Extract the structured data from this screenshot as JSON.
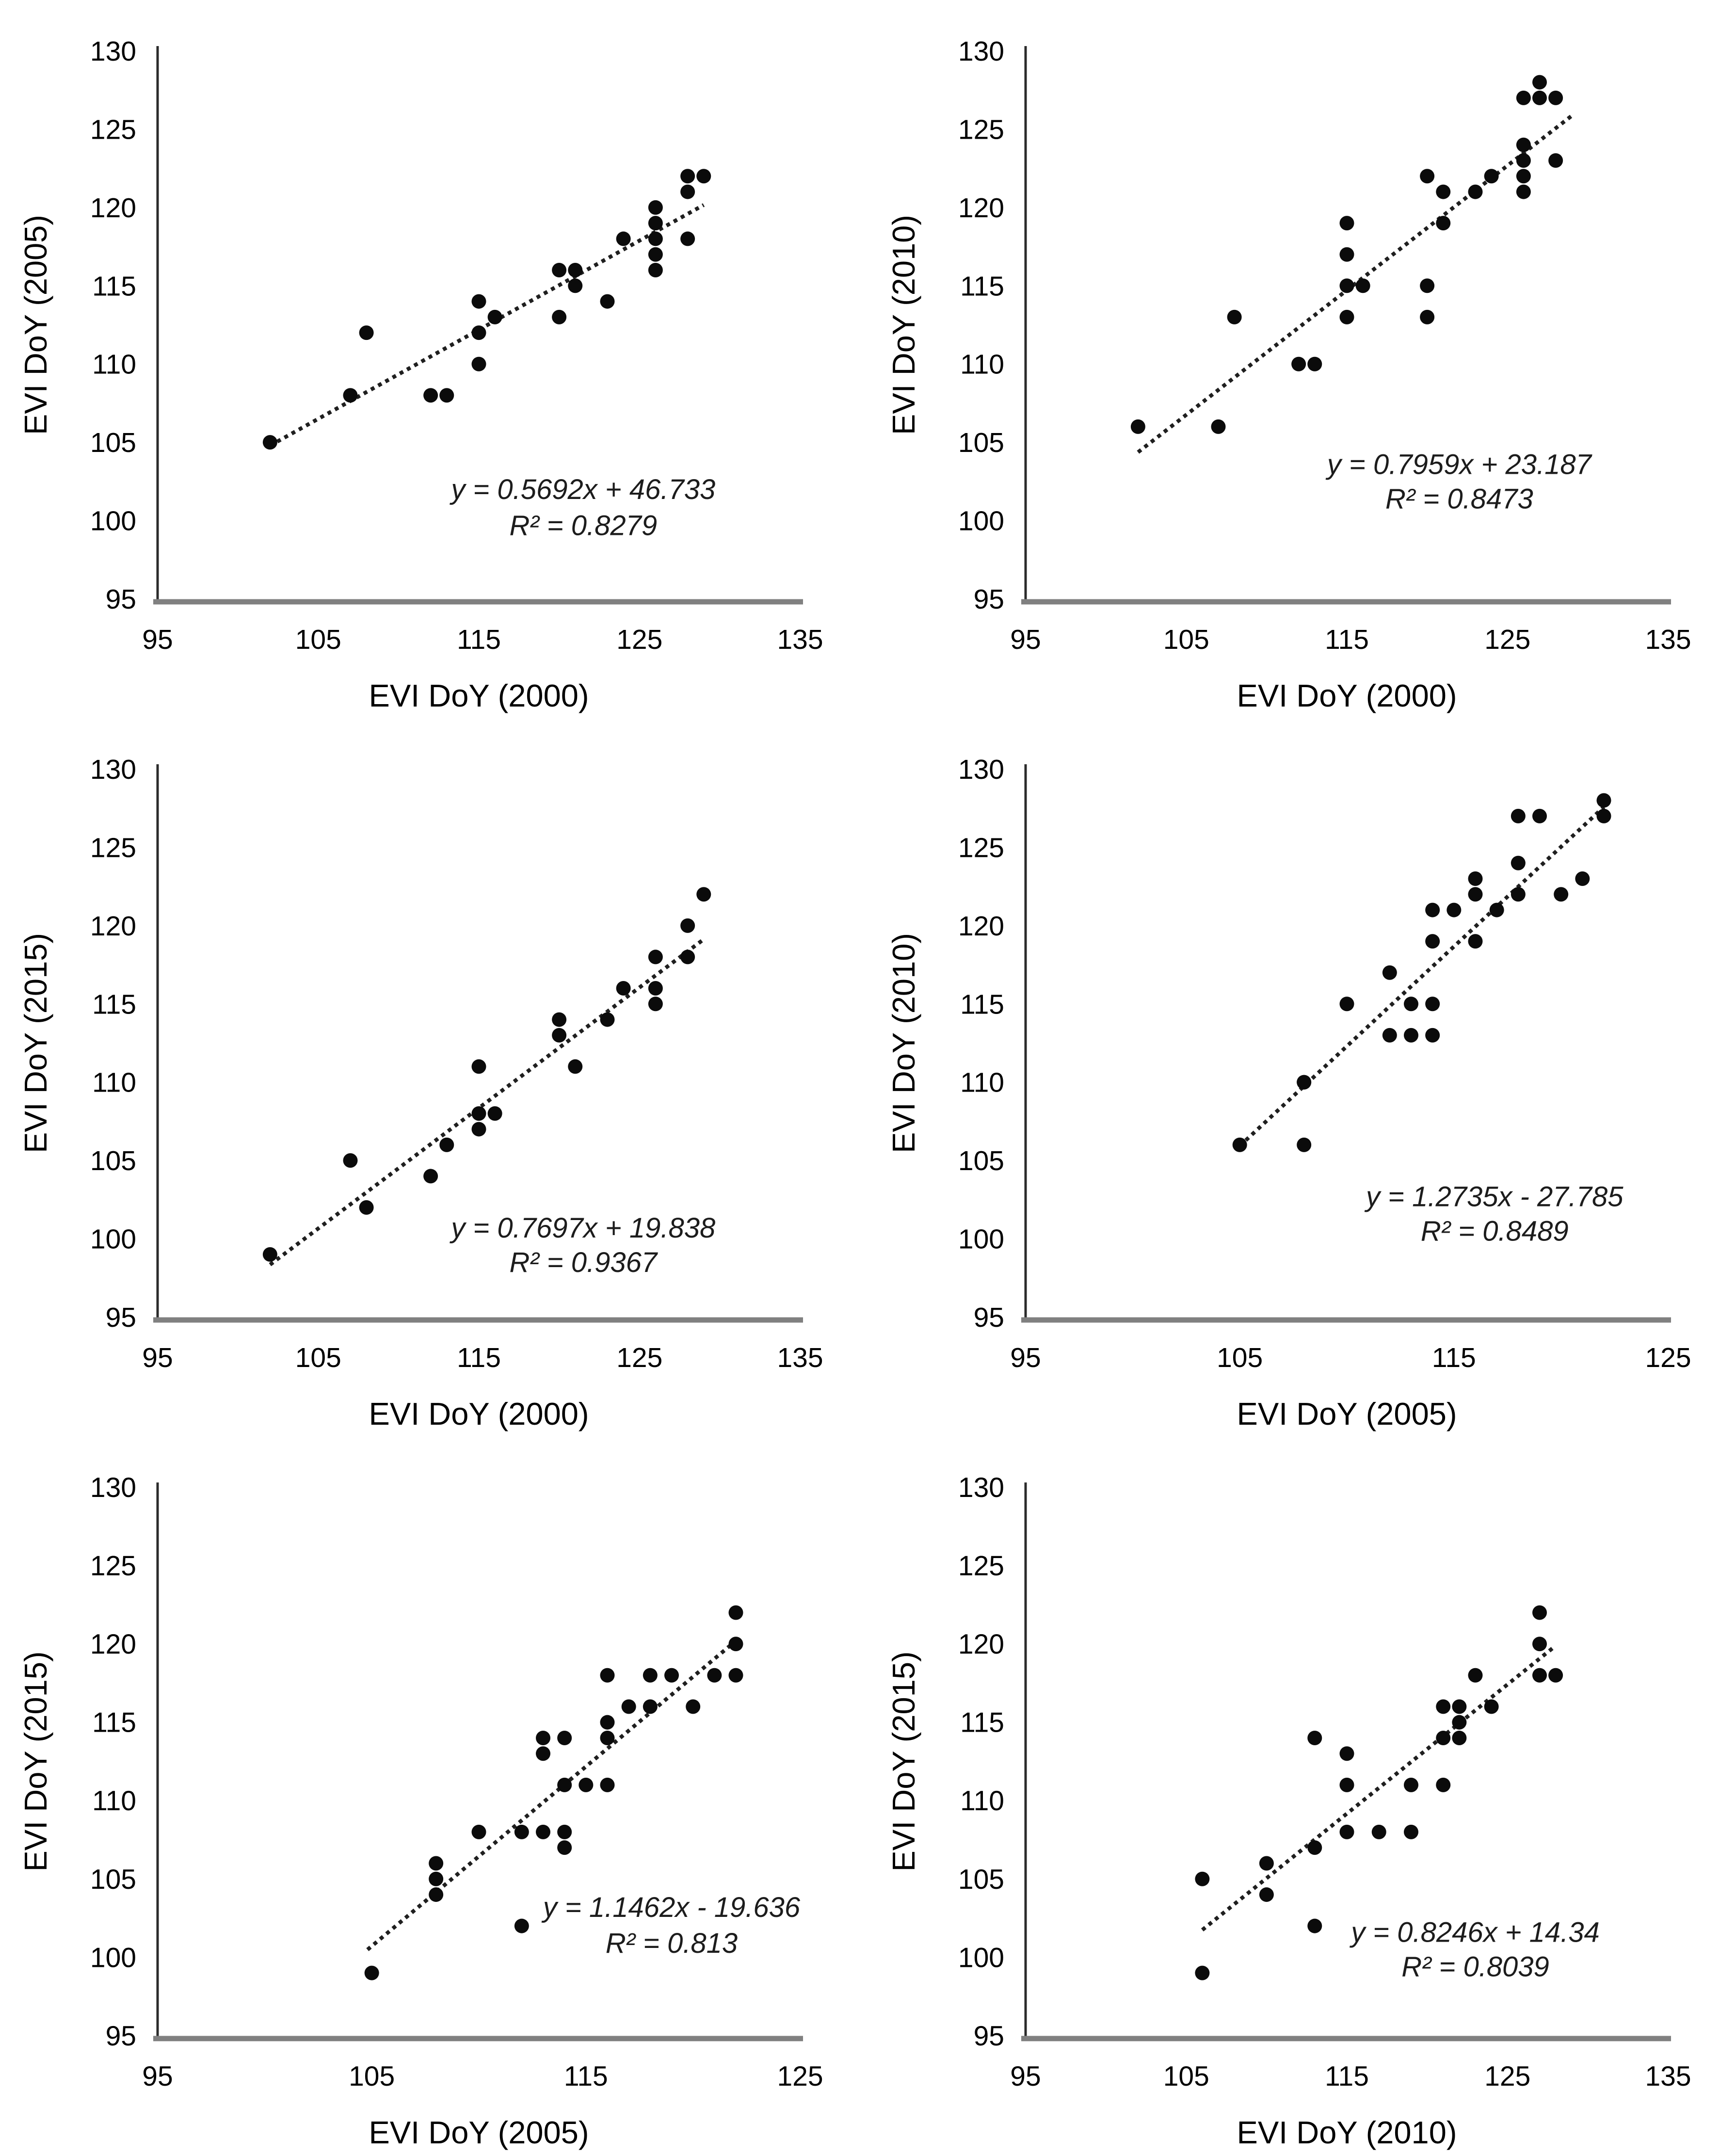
{
  "figure": {
    "description": "Six scatter plots comparing MODIS EVI start-of-season day-of-year (EVI DoY) between the years 2000, 2005, 2010 and 2015",
    "background": "#ffffff",
    "grid_rows": 3,
    "grid_cols": 2
  },
  "style": {
    "point_color": "#0b0b0b",
    "trend_color": "#1f1f1f",
    "x_axis_color": "#808080",
    "y_axis_color": "#2b2b2b",
    "text_color": "#000000",
    "point_radius": 15,
    "trend_style": "dotted"
  },
  "chart_data": [
    {
      "id": "2000-2005",
      "type": "scatter",
      "title": "",
      "xlabel": "EVI DoY (2000)",
      "ylabel": "EVI DoY (2005)",
      "xlim": [
        95,
        135
      ],
      "ylim": [
        95,
        130
      ],
      "xticks": [
        95,
        105,
        115,
        125,
        135
      ],
      "yticks": [
        95,
        100,
        105,
        110,
        115,
        120,
        125,
        130
      ],
      "grid": false,
      "legend": "none",
      "points": [
        [
          102,
          105
        ],
        [
          107,
          108
        ],
        [
          108,
          112
        ],
        [
          112,
          108
        ],
        [
          113,
          108
        ],
        [
          115,
          110
        ],
        [
          115,
          112
        ],
        [
          115,
          114
        ],
        [
          116,
          113
        ],
        [
          120,
          113
        ],
        [
          120,
          116
        ],
        [
          121,
          115
        ],
        [
          121,
          116
        ],
        [
          123,
          114
        ],
        [
          124,
          118
        ],
        [
          126,
          116
        ],
        [
          126,
          117
        ],
        [
          126,
          118
        ],
        [
          126,
          119
        ],
        [
          126,
          120
        ],
        [
          128,
          118
        ],
        [
          128,
          121
        ],
        [
          128,
          122
        ],
        [
          129,
          122
        ]
      ],
      "trendline": {
        "style": "dotted",
        "slope": 0.5692,
        "intercept": 46.733,
        "x_start": 102,
        "x_end": 129
      },
      "equation": "y = 0.5692x + 46.733",
      "r_squared": "R² = 0.8279",
      "equation_pos": {
        "x": 121.5,
        "y_line1": 102.0,
        "y_line2": 99.7
      }
    },
    {
      "id": "2000-2010",
      "type": "scatter",
      "title": "",
      "xlabel": "EVI DoY (2000)",
      "ylabel": "EVI DoY (2010)",
      "xlim": [
        95,
        135
      ],
      "ylim": [
        95,
        130
      ],
      "xticks": [
        95,
        105,
        115,
        125,
        135
      ],
      "yticks": [
        95,
        100,
        105,
        110,
        115,
        120,
        125,
        130
      ],
      "grid": false,
      "legend": "none",
      "points": [
        [
          102,
          106
        ],
        [
          107,
          106
        ],
        [
          108,
          113
        ],
        [
          112,
          110
        ],
        [
          113,
          110
        ],
        [
          115,
          113
        ],
        [
          115,
          115
        ],
        [
          115,
          117
        ],
        [
          115,
          119
        ],
        [
          116,
          115
        ],
        [
          120,
          113
        ],
        [
          120,
          115
        ],
        [
          120,
          122
        ],
        [
          121,
          119
        ],
        [
          121,
          121
        ],
        [
          123,
          121
        ],
        [
          124,
          122
        ],
        [
          126,
          121
        ],
        [
          126,
          122
        ],
        [
          126,
          123
        ],
        [
          126,
          124
        ],
        [
          126,
          127
        ],
        [
          127,
          127
        ],
        [
          127,
          128
        ],
        [
          128,
          123
        ],
        [
          128,
          127
        ]
      ],
      "trendline": {
        "style": "dotted",
        "slope": 0.7959,
        "intercept": 23.187,
        "x_start": 102,
        "x_end": 129
      },
      "equation": "y = 0.7959x + 23.187",
      "r_squared": "R² = 0.8473",
      "equation_pos": {
        "x": 122.0,
        "y_line1": 103.6,
        "y_line2": 101.4
      }
    },
    {
      "id": "2000-2015",
      "type": "scatter",
      "title": "",
      "xlabel": "EVI DoY (2000)",
      "ylabel": "EVI DoY (2015)",
      "xlim": [
        95,
        135
      ],
      "ylim": [
        95,
        130
      ],
      "xticks": [
        95,
        105,
        115,
        125,
        135
      ],
      "yticks": [
        95,
        100,
        105,
        110,
        115,
        120,
        125,
        130
      ],
      "grid": false,
      "legend": "none",
      "points": [
        [
          102,
          99
        ],
        [
          107,
          105
        ],
        [
          108,
          102
        ],
        [
          112,
          104
        ],
        [
          113,
          106
        ],
        [
          115,
          107
        ],
        [
          115,
          108
        ],
        [
          115,
          111
        ],
        [
          116,
          108
        ],
        [
          120,
          113
        ],
        [
          120,
          114
        ],
        [
          121,
          111
        ],
        [
          123,
          114
        ],
        [
          124,
          116
        ],
        [
          126,
          115
        ],
        [
          126,
          116
        ],
        [
          126,
          118
        ],
        [
          128,
          118
        ],
        [
          128,
          120
        ],
        [
          129,
          122
        ]
      ],
      "trendline": {
        "style": "dotted",
        "slope": 0.7697,
        "intercept": 19.838,
        "x_start": 102,
        "x_end": 129
      },
      "equation": "y = 0.7697x + 19.838",
      "r_squared": "R² = 0.9367",
      "equation_pos": {
        "x": 121.5,
        "y_line1": 100.7,
        "y_line2": 98.5
      }
    },
    {
      "id": "2005-2010",
      "type": "scatter",
      "title": "",
      "xlabel": "EVI DoY (2005)",
      "ylabel": "EVI DoY (2010)",
      "xlim": [
        95,
        125
      ],
      "ylim": [
        95,
        130
      ],
      "xticks": [
        95,
        105,
        115,
        125
      ],
      "yticks": [
        95,
        100,
        105,
        110,
        115,
        120,
        125,
        130
      ],
      "grid": false,
      "legend": "none",
      "points": [
        [
          105,
          106
        ],
        [
          108,
          106
        ],
        [
          108,
          110
        ],
        [
          108,
          110
        ],
        [
          110,
          115
        ],
        [
          112,
          113
        ],
        [
          112,
          117
        ],
        [
          113,
          113
        ],
        [
          113,
          115
        ],
        [
          114,
          113
        ],
        [
          114,
          115
        ],
        [
          114,
          119
        ],
        [
          114,
          121
        ],
        [
          115,
          121
        ],
        [
          116,
          119
        ],
        [
          116,
          122
        ],
        [
          116,
          123
        ],
        [
          117,
          121
        ],
        [
          118,
          122
        ],
        [
          118,
          124
        ],
        [
          118,
          127
        ],
        [
          119,
          127
        ],
        [
          120,
          122
        ],
        [
          121,
          123
        ],
        [
          122,
          127
        ],
        [
          122,
          128
        ]
      ],
      "trendline": {
        "style": "dotted",
        "slope": 1.2735,
        "intercept": -27.785,
        "x_start": 105,
        "x_end": 122
      },
      "equation": "y = 1.2735x - 27.785",
      "r_squared": "R² = 0.8489",
      "equation_pos": {
        "x": 116.9,
        "y_line1": 102.7,
        "y_line2": 100.5
      }
    },
    {
      "id": "2005-2015",
      "type": "scatter",
      "title": "",
      "xlabel": "EVI DoY (2005)",
      "ylabel": "EVI DoY (2015)",
      "xlim": [
        95,
        125
      ],
      "ylim": [
        95,
        130
      ],
      "xticks": [
        95,
        105,
        115,
        125
      ],
      "yticks": [
        95,
        100,
        105,
        110,
        115,
        120,
        125,
        130
      ],
      "grid": false,
      "legend": "none",
      "points": [
        [
          105,
          99
        ],
        [
          108,
          104
        ],
        [
          108,
          105
        ],
        [
          108,
          106
        ],
        [
          110,
          108
        ],
        [
          112,
          102
        ],
        [
          112,
          108
        ],
        [
          113,
          108
        ],
        [
          113,
          113
        ],
        [
          113,
          114
        ],
        [
          114,
          107
        ],
        [
          114,
          108
        ],
        [
          114,
          111
        ],
        [
          114,
          114
        ],
        [
          115,
          111
        ],
        [
          116,
          111
        ],
        [
          116,
          114
        ],
        [
          116,
          115
        ],
        [
          116,
          118
        ],
        [
          117,
          116
        ],
        [
          118,
          116
        ],
        [
          118,
          118
        ],
        [
          119,
          118
        ],
        [
          120,
          116
        ],
        [
          121,
          118
        ],
        [
          122,
          118
        ],
        [
          122,
          120
        ],
        [
          122,
          122
        ]
      ],
      "trendline": {
        "style": "dotted",
        "slope": 1.1462,
        "intercept": -19.636,
        "x_start": 104.8,
        "x_end": 122
      },
      "equation": "y = 1.1462x - 19.636",
      "r_squared": "R² = 0.813",
      "equation_pos": {
        "x": 119.0,
        "y_line1": 103.2,
        "y_line2": 100.9
      }
    },
    {
      "id": "2010-2015",
      "type": "scatter",
      "title": "",
      "xlabel": "EVI DoY (2010)",
      "ylabel": "EVI DoY (2015)",
      "xlim": [
        95,
        135
      ],
      "ylim": [
        95,
        130
      ],
      "xticks": [
        95,
        105,
        115,
        125,
        135
      ],
      "yticks": [
        95,
        100,
        105,
        110,
        115,
        120,
        125,
        130
      ],
      "grid": false,
      "legend": "none",
      "points": [
        [
          106,
          99
        ],
        [
          106,
          105
        ],
        [
          110,
          104
        ],
        [
          110,
          106
        ],
        [
          113,
          102
        ],
        [
          113,
          107
        ],
        [
          113,
          114
        ],
        [
          115,
          108
        ],
        [
          115,
          111
        ],
        [
          115,
          113
        ],
        [
          117,
          108
        ],
        [
          119,
          108
        ],
        [
          119,
          111
        ],
        [
          121,
          111
        ],
        [
          121,
          114
        ],
        [
          121,
          116
        ],
        [
          122,
          114
        ],
        [
          122,
          115
        ],
        [
          122,
          116
        ],
        [
          123,
          118
        ],
        [
          124,
          116
        ],
        [
          127,
          118
        ],
        [
          127,
          120
        ],
        [
          127,
          122
        ],
        [
          128,
          118
        ]
      ],
      "trendline": {
        "style": "dotted",
        "slope": 0.8246,
        "intercept": 14.34,
        "x_start": 106,
        "x_end": 128
      },
      "equation": "y = 0.8246x + 14.34",
      "r_squared": "R² = 0.8039",
      "equation_pos": {
        "x": 123.0,
        "y_line1": 101.6,
        "y_line2": 99.4
      }
    }
  ]
}
